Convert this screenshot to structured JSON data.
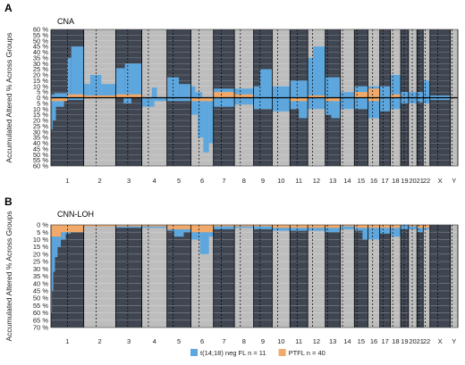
{
  "chart_data": [
    {
      "type": "bar",
      "panel": "A",
      "title": "CNA",
      "ylabel": "Accumulated Altered % Across Groups",
      "yticks": [
        "60 %",
        "55 %",
        "50 %",
        "45 %",
        "40 %",
        "35 %",
        "30 %",
        "25 %",
        "20 %",
        "15 %",
        "10 %",
        "5 %",
        "0 %",
        "5 %",
        "10 %",
        "15 %",
        "20 %",
        "25 %",
        "30 %",
        "35 %",
        "40 %",
        "45 %",
        "50 %",
        "55 %",
        "60 %"
      ],
      "ylim": [
        -60,
        60
      ],
      "gains_blue": [
        {
          "chr": "1",
          "from": 0.0,
          "to": 0.1,
          "v": 3
        },
        {
          "chr": "1",
          "from": 0.1,
          "to": 0.5,
          "v": 4
        },
        {
          "chr": "1",
          "from": 0.5,
          "to": 0.62,
          "v": 35
        },
        {
          "chr": "1",
          "from": 0.62,
          "to": 1.0,
          "v": 45
        },
        {
          "chr": "2",
          "from": 0.0,
          "to": 0.2,
          "v": 12
        },
        {
          "chr": "2",
          "from": 0.2,
          "to": 0.55,
          "v": 20
        },
        {
          "chr": "2",
          "from": 0.55,
          "to": 1.0,
          "v": 12
        },
        {
          "chr": "3",
          "from": 0.0,
          "to": 0.35,
          "v": 26
        },
        {
          "chr": "3",
          "from": 0.35,
          "to": 1.0,
          "v": 30
        },
        {
          "chr": "4",
          "from": 0.4,
          "to": 0.6,
          "v": 9
        },
        {
          "chr": "5",
          "from": 0.0,
          "to": 0.5,
          "v": 18
        },
        {
          "chr": "5",
          "from": 0.5,
          "to": 1.0,
          "v": 12
        },
        {
          "chr": "6",
          "from": 0.0,
          "to": 0.2,
          "v": 10
        },
        {
          "chr": "6",
          "from": 0.2,
          "to": 0.5,
          "v": 5
        },
        {
          "chr": "7",
          "from": 0.0,
          "to": 1.0,
          "v": 8
        },
        {
          "chr": "8",
          "from": 0.0,
          "to": 1.0,
          "v": 8
        },
        {
          "chr": "9",
          "from": 0.0,
          "to": 0.35,
          "v": 10
        },
        {
          "chr": "9",
          "from": 0.35,
          "to": 1.0,
          "v": 25
        },
        {
          "chr": "10",
          "from": 0.0,
          "to": 1.0,
          "v": 10
        },
        {
          "chr": "11",
          "from": 0.0,
          "to": 1.0,
          "v": 15
        },
        {
          "chr": "12",
          "from": 0.0,
          "to": 0.3,
          "v": 35
        },
        {
          "chr": "12",
          "from": 0.3,
          "to": 1.0,
          "v": 45
        },
        {
          "chr": "13",
          "from": 0.0,
          "to": 1.0,
          "v": 18
        },
        {
          "chr": "14",
          "from": 0.0,
          "to": 1.0,
          "v": 5
        },
        {
          "chr": "15",
          "from": 0.0,
          "to": 1.0,
          "v": 10
        },
        {
          "chr": "16",
          "from": 0.0,
          "to": 1.0,
          "v": 10
        },
        {
          "chr": "17",
          "from": 0.0,
          "to": 1.0,
          "v": 10
        },
        {
          "chr": "18",
          "from": 0.0,
          "to": 1.0,
          "v": 20
        },
        {
          "chr": "19",
          "from": 0.0,
          "to": 1.0,
          "v": 5
        },
        {
          "chr": "20",
          "from": 0.0,
          "to": 1.0,
          "v": 5
        },
        {
          "chr": "21",
          "from": 0.0,
          "to": 1.0,
          "v": 5
        },
        {
          "chr": "22",
          "from": 0.0,
          "to": 1.0,
          "v": 15
        },
        {
          "chr": "X",
          "from": 0.0,
          "to": 1.0,
          "v": 2
        }
      ],
      "gains_orange": [
        {
          "chr": "1",
          "from": 0.5,
          "to": 1.0,
          "v": 3
        },
        {
          "chr": "2",
          "from": 0.0,
          "to": 1.0,
          "v": 2
        },
        {
          "chr": "3",
          "from": 0.0,
          "to": 1.0,
          "v": 3
        },
        {
          "chr": "7",
          "from": 0.0,
          "to": 1.0,
          "v": 5
        },
        {
          "chr": "8",
          "from": 0.0,
          "to": 1.0,
          "v": 3
        },
        {
          "chr": "12",
          "from": 0.0,
          "to": 1.0,
          "v": 2
        },
        {
          "chr": "15",
          "from": 0.0,
          "to": 1.0,
          "v": 5
        },
        {
          "chr": "16",
          "from": 0.0,
          "to": 1.0,
          "v": 8
        },
        {
          "chr": "18",
          "from": 0.0,
          "to": 1.0,
          "v": 3
        }
      ],
      "losses_blue": [
        {
          "chr": "1",
          "from": 0.0,
          "to": 0.05,
          "v": 28
        },
        {
          "chr": "1",
          "from": 0.05,
          "to": 0.15,
          "v": 20
        },
        {
          "chr": "1",
          "from": 0.15,
          "to": 0.4,
          "v": 8
        },
        {
          "chr": "1",
          "from": 0.4,
          "to": 1.0,
          "v": 2
        },
        {
          "chr": "3",
          "from": 0.3,
          "to": 0.6,
          "v": 5
        },
        {
          "chr": "4",
          "from": 0.0,
          "to": 0.5,
          "v": 8
        },
        {
          "chr": "4",
          "from": 0.5,
          "to": 1.0,
          "v": 3
        },
        {
          "chr": "5",
          "from": 0.0,
          "to": 1.0,
          "v": 3
        },
        {
          "chr": "6",
          "from": 0.0,
          "to": 0.3,
          "v": 15
        },
        {
          "chr": "6",
          "from": 0.3,
          "to": 0.55,
          "v": 35
        },
        {
          "chr": "6",
          "from": 0.55,
          "to": 0.8,
          "v": 48
        },
        {
          "chr": "6",
          "from": 0.8,
          "to": 1.0,
          "v": 40
        },
        {
          "chr": "7",
          "from": 0.0,
          "to": 1.0,
          "v": 8
        },
        {
          "chr": "8",
          "from": 0.0,
          "to": 1.0,
          "v": 6
        },
        {
          "chr": "9",
          "from": 0.0,
          "to": 1.0,
          "v": 10
        },
        {
          "chr": "10",
          "from": 0.0,
          "to": 1.0,
          "v": 12
        },
        {
          "chr": "11",
          "from": 0.0,
          "to": 0.5,
          "v": 10
        },
        {
          "chr": "11",
          "from": 0.5,
          "to": 1.0,
          "v": 18
        },
        {
          "chr": "12",
          "from": 0.0,
          "to": 1.0,
          "v": 10
        },
        {
          "chr": "13",
          "from": 0.0,
          "to": 0.4,
          "v": 15
        },
        {
          "chr": "13",
          "from": 0.4,
          "to": 1.0,
          "v": 18
        },
        {
          "chr": "14",
          "from": 0.0,
          "to": 1.0,
          "v": 10
        },
        {
          "chr": "15",
          "from": 0.0,
          "to": 1.0,
          "v": 10
        },
        {
          "chr": "16",
          "from": 0.0,
          "to": 1.0,
          "v": 18
        },
        {
          "chr": "17",
          "from": 0.0,
          "to": 1.0,
          "v": 12
        },
        {
          "chr": "18",
          "from": 0.0,
          "to": 1.0,
          "v": 10
        },
        {
          "chr": "19",
          "from": 0.0,
          "to": 1.0,
          "v": 5
        },
        {
          "chr": "20",
          "from": 0.0,
          "to": 1.0,
          "v": 5
        },
        {
          "chr": "21",
          "from": 0.0,
          "to": 1.0,
          "v": 4
        },
        {
          "chr": "22",
          "from": 0.0,
          "to": 1.0,
          "v": 5
        },
        {
          "chr": "X",
          "from": 0.0,
          "to": 1.0,
          "v": 2
        }
      ],
      "losses_orange": [
        {
          "chr": "1",
          "from": 0.0,
          "to": 0.5,
          "v": 3
        },
        {
          "chr": "6",
          "from": 0.0,
          "to": 1.0,
          "v": 3
        },
        {
          "chr": "11",
          "from": 0.0,
          "to": 1.0,
          "v": 3
        },
        {
          "chr": "13",
          "from": 0.0,
          "to": 1.0,
          "v": 3
        },
        {
          "chr": "16",
          "from": 0.0,
          "to": 1.0,
          "v": 3
        }
      ]
    },
    {
      "type": "bar",
      "panel": "B",
      "title": "CNN-LOH",
      "ylabel": "Accumulated Altered % Across Groups",
      "yticks": [
        "0 %",
        "5 %",
        "10 %",
        "15 %",
        "20 %",
        "25 %",
        "30 %",
        "35 %",
        "40 %",
        "45 %",
        "50 %",
        "55 %",
        "60 %",
        "65 %",
        "70 %"
      ],
      "ylim": [
        0,
        70
      ],
      "loh_blue": [
        {
          "chr": "1",
          "from": 0.0,
          "to": 0.03,
          "v": 60
        },
        {
          "chr": "1",
          "from": 0.03,
          "to": 0.07,
          "v": 45
        },
        {
          "chr": "1",
          "from": 0.07,
          "to": 0.12,
          "v": 32
        },
        {
          "chr": "1",
          "from": 0.12,
          "to": 0.2,
          "v": 22
        },
        {
          "chr": "1",
          "from": 0.2,
          "to": 0.3,
          "v": 15
        },
        {
          "chr": "1",
          "from": 0.3,
          "to": 0.45,
          "v": 10
        },
        {
          "chr": "1",
          "from": 0.45,
          "to": 0.6,
          "v": 6
        },
        {
          "chr": "1",
          "from": 0.6,
          "to": 1.0,
          "v": 4
        },
        {
          "chr": "2",
          "from": 0.0,
          "to": 1.0,
          "v": 1
        },
        {
          "chr": "3",
          "from": 0.0,
          "to": 1.0,
          "v": 2
        },
        {
          "chr": "4",
          "from": 0.0,
          "to": 1.0,
          "v": 2
        },
        {
          "chr": "5",
          "from": 0.0,
          "to": 0.3,
          "v": 4
        },
        {
          "chr": "5",
          "from": 0.3,
          "to": 0.7,
          "v": 8
        },
        {
          "chr": "5",
          "from": 0.7,
          "to": 1.0,
          "v": 5
        },
        {
          "chr": "6",
          "from": 0.0,
          "to": 0.4,
          "v": 10
        },
        {
          "chr": "6",
          "from": 0.4,
          "to": 0.8,
          "v": 20
        },
        {
          "chr": "6",
          "from": 0.8,
          "to": 1.0,
          "v": 8
        },
        {
          "chr": "7",
          "from": 0.0,
          "to": 1.0,
          "v": 3
        },
        {
          "chr": "8",
          "from": 0.0,
          "to": 1.0,
          "v": 2
        },
        {
          "chr": "9",
          "from": 0.0,
          "to": 1.0,
          "v": 3
        },
        {
          "chr": "10",
          "from": 0.0,
          "to": 1.0,
          "v": 4
        },
        {
          "chr": "11",
          "from": 0.0,
          "to": 1.0,
          "v": 4
        },
        {
          "chr": "12",
          "from": 0.0,
          "to": 1.0,
          "v": 4
        },
        {
          "chr": "13",
          "from": 0.0,
          "to": 1.0,
          "v": 5
        },
        {
          "chr": "14",
          "from": 0.0,
          "to": 1.0,
          "v": 3
        },
        {
          "chr": "15",
          "from": 0.0,
          "to": 0.6,
          "v": 4
        },
        {
          "chr": "15",
          "from": 0.6,
          "to": 1.0,
          "v": 10
        },
        {
          "chr": "16",
          "from": 0.0,
          "to": 1.0,
          "v": 10
        },
        {
          "chr": "17",
          "from": 0.0,
          "to": 1.0,
          "v": 6
        },
        {
          "chr": "18",
          "from": 0.0,
          "to": 1.0,
          "v": 8
        },
        {
          "chr": "19",
          "from": 0.0,
          "to": 1.0,
          "v": 3
        },
        {
          "chr": "20",
          "from": 0.0,
          "to": 1.0,
          "v": 3
        },
        {
          "chr": "21",
          "from": 0.0,
          "to": 1.0,
          "v": 5
        },
        {
          "chr": "22",
          "from": 0.0,
          "to": 1.0,
          "v": 3
        }
      ],
      "loh_orange": [
        {
          "chr": "1",
          "from": 0.0,
          "to": 0.3,
          "v": 8
        },
        {
          "chr": "1",
          "from": 0.3,
          "to": 1.0,
          "v": 5
        },
        {
          "chr": "2",
          "from": 0.0,
          "to": 1.0,
          "v": 1
        },
        {
          "chr": "3",
          "from": 0.0,
          "to": 1.0,
          "v": 1
        },
        {
          "chr": "4",
          "from": 0.0,
          "to": 1.0,
          "v": 1
        },
        {
          "chr": "5",
          "from": 0.0,
          "to": 1.0,
          "v": 3
        },
        {
          "chr": "6",
          "from": 0.0,
          "to": 1.0,
          "v": 5
        },
        {
          "chr": "7",
          "from": 0.0,
          "to": 1.0,
          "v": 1
        },
        {
          "chr": "8",
          "from": 0.0,
          "to": 1.0,
          "v": 1
        },
        {
          "chr": "9",
          "from": 0.0,
          "to": 1.0,
          "v": 1
        },
        {
          "chr": "10",
          "from": 0.0,
          "to": 1.0,
          "v": 2
        },
        {
          "chr": "11",
          "from": 0.0,
          "to": 1.0,
          "v": 2
        },
        {
          "chr": "12",
          "from": 0.0,
          "to": 1.0,
          "v": 2
        },
        {
          "chr": "13",
          "from": 0.0,
          "to": 1.0,
          "v": 2
        },
        {
          "chr": "14",
          "from": 0.0,
          "to": 1.0,
          "v": 1
        },
        {
          "chr": "15",
          "from": 0.0,
          "to": 1.0,
          "v": 2
        },
        {
          "chr": "16",
          "from": 0.0,
          "to": 1.0,
          "v": 2
        },
        {
          "chr": "17",
          "from": 0.0,
          "to": 1.0,
          "v": 2
        },
        {
          "chr": "18",
          "from": 0.0,
          "to": 1.0,
          "v": 2
        },
        {
          "chr": "20",
          "from": 0.0,
          "to": 1.0,
          "v": 1
        },
        {
          "chr": "21",
          "from": 0.0,
          "to": 1.0,
          "v": 2
        },
        {
          "chr": "22",
          "from": 0.0,
          "to": 1.0,
          "v": 2
        }
      ]
    }
  ],
  "chromosomes": [
    {
      "label": "1",
      "w": 24.9,
      "c": 0.5
    },
    {
      "label": "2",
      "w": 24.3,
      "c": 0.39
    },
    {
      "label": "3",
      "w": 19.8,
      "c": 0.46
    },
    {
      "label": "4",
      "w": 19.1,
      "c": 0.26
    },
    {
      "label": "5",
      "w": 18.2,
      "c": 0.26
    },
    {
      "label": "6",
      "w": 17.1,
      "c": 0.35
    },
    {
      "label": "7",
      "w": 15.9,
      "c": 0.38
    },
    {
      "label": "8",
      "w": 14.6,
      "c": 0.31
    },
    {
      "label": "9",
      "w": 14.1,
      "c": 0.35
    },
    {
      "label": "10",
      "w": 13.5,
      "c": 0.3
    },
    {
      "label": "11",
      "w": 13.5,
      "c": 0.4
    },
    {
      "label": "12",
      "w": 13.3,
      "c": 0.27
    },
    {
      "label": "13",
      "w": 11.4,
      "c": 0.15
    },
    {
      "label": "14",
      "w": 10.7,
      "c": 0.16
    },
    {
      "label": "15",
      "w": 10.3,
      "c": 0.19
    },
    {
      "label": "16",
      "w": 9.0,
      "c": 0.4
    },
    {
      "label": "17",
      "w": 8.1,
      "c": 0.3
    },
    {
      "label": "18",
      "w": 7.8,
      "c": 0.22
    },
    {
      "label": "19",
      "w": 5.9,
      "c": 0.45
    },
    {
      "label": "20",
      "w": 6.4,
      "c": 0.45
    },
    {
      "label": "21",
      "w": 4.8,
      "c": 0.27
    },
    {
      "label": "22",
      "w": 5.1,
      "c": 0.3
    },
    {
      "label": "X",
      "w": 15.5,
      "c": 0.39
    },
    {
      "label": "Y",
      "w": 5.7,
      "c": 0.22
    }
  ],
  "legend": [
    {
      "label": "t(14;18) neg FL n = 11",
      "color": "#5ea7de"
    },
    {
      "label": "PTFL n = 40",
      "color": "#f0a96a"
    }
  ],
  "colors": {
    "dark_band": "#3f4652",
    "light_band": "#bdbdbd",
    "blue": "#5ea7de",
    "orange": "#f0a96a"
  }
}
